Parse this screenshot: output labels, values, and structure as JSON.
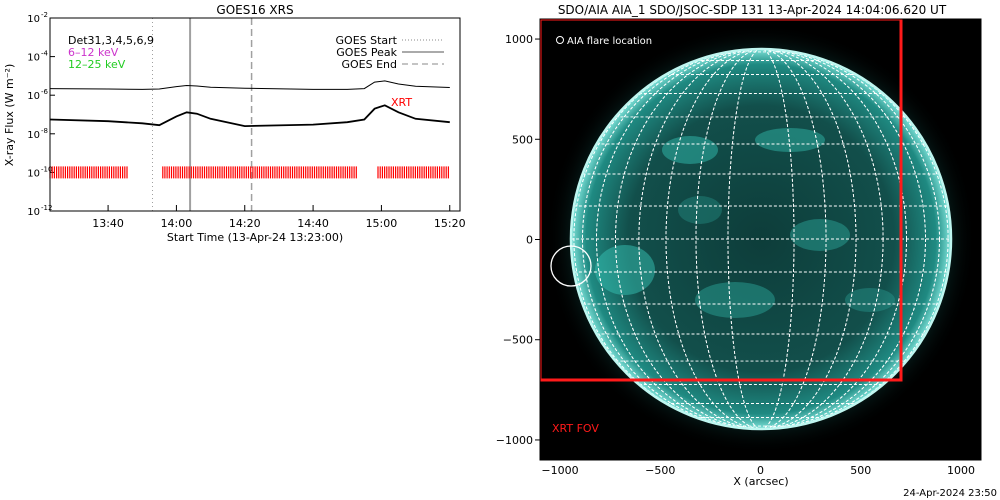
{
  "goes": {
    "title": "GOES16 XRS",
    "ylabel": "X-ray Flux (W m⁻²)",
    "xlabel": "Start Time (13-Apr-24 13:23:00)",
    "ytick_exponents": [
      -12,
      -10,
      -8,
      -6,
      -4,
      -2
    ],
    "ytick_base": "10",
    "xticks": [
      "13:40",
      "14:00",
      "14:20",
      "14:40",
      "15:00",
      "15:20"
    ],
    "legend_left": [
      {
        "text": "Det31,3,4,5,6,9",
        "color": "#000000"
      },
      {
        "text": "6–12 keV",
        "color": "#cc33cc"
      },
      {
        "text": "12–25 keV",
        "color": "#22cc22"
      }
    ],
    "legend_right": [
      {
        "text": "GOES Start",
        "style": "dotted"
      },
      {
        "text": "GOES Peak",
        "style": "solid"
      },
      {
        "text": "GOES End",
        "style": "dashed"
      }
    ],
    "xrt_label": "XRT",
    "colors": {
      "xrt": "#ff0000",
      "data": "#000000",
      "marker": "#a0a0a0"
    }
  },
  "chart_data": [
    {
      "type": "line",
      "title": "GOES16 XRS",
      "xlabel": "Start Time (13-Apr-24 13:23:00)",
      "ylabel": "X-ray Flux (W m⁻²)",
      "yscale": "log",
      "ylim": [
        1e-12,
        0.01
      ],
      "xlim": [
        "13:23",
        "15:23"
      ],
      "series": [
        {
          "x": [
            "13:23",
            "13:40",
            "13:50",
            "13:55",
            "14:00",
            "14:03",
            "14:06",
            "14:10",
            "14:20",
            "14:40",
            "14:50",
            "14:55",
            "14:58",
            "15:01",
            "15:05",
            "15:10",
            "15:20"
          ],
          "values": [
            2.2e-06,
            2.1e-06,
            2e-06,
            2.1e-06,
            2.8e-06,
            3.2e-06,
            3e-06,
            2.6e-06,
            2.3e-06,
            2e-06,
            2e-06,
            2.2e-06,
            4.8e-06,
            5.5e-06,
            3.8e-06,
            2.9e-06,
            2.5e-06
          ]
        },
        {
          "x": [
            "13:23",
            "13:40",
            "13:50",
            "13:55",
            "14:00",
            "14:03",
            "14:06",
            "14:10",
            "14:20",
            "14:40",
            "14:50",
            "14:55",
            "14:58",
            "15:01",
            "15:05",
            "15:10",
            "15:20"
          ],
          "values": [
            5.5e-08,
            4.5e-08,
            3.5e-08,
            2.8e-08,
            8e-08,
            1.3e-07,
            1.1e-07,
            6e-08,
            2.5e-08,
            3e-08,
            4e-08,
            5.5e-08,
            2e-07,
            3e-07,
            1.3e-07,
            6e-08,
            4e-08
          ]
        }
      ],
      "event_lines": {
        "goes_start": "13:53",
        "goes_peak": "14:04",
        "goes_end": "14:22"
      },
      "xrt_coverage": [
        [
          "13:23",
          "13:46"
        ],
        [
          "13:56",
          "14:53"
        ],
        [
          "14:59",
          "15:20"
        ]
      ],
      "legend": "top-right"
    },
    {
      "type": "scatter",
      "title": "SDO/AIA AIA_1 SDO/JSOC-SDP 131 13-Apr-2024 14:04:06.620 UT",
      "xlabel": "X (arcsec)",
      "ylabel": "",
      "xlim": [
        -1100,
        1100
      ],
      "ylim": [
        -1100,
        1100
      ],
      "xticks": [
        -1000,
        -500,
        0,
        500,
        1000
      ],
      "yticks": [
        -1000,
        -500,
        0,
        500,
        1000
      ],
      "flare_location": {
        "x": -950,
        "y": -120,
        "label": "AIA flare location"
      },
      "xrt_fov": {
        "x": [
          -1100,
          700
        ],
        "y": [
          -700,
          1100
        ],
        "label": "XRT FOV"
      },
      "footer": "24-Apr-2024 23:50"
    }
  ],
  "aia": {
    "title": "SDO/AIA AIA_1 SDO/JSOC-SDP 131 13-Apr-2024 14:04:06.620 UT",
    "xlabel": "X (arcsec)",
    "flare_label": "AIA flare location",
    "fov_label": "XRT FOV",
    "footer": "24-Apr-2024 23:50",
    "colors": {
      "disk": "#14706a",
      "limb": "#9ff0e8",
      "grid": "#ffffff",
      "fov": "#ff1a1a",
      "bg": "#000000"
    }
  }
}
